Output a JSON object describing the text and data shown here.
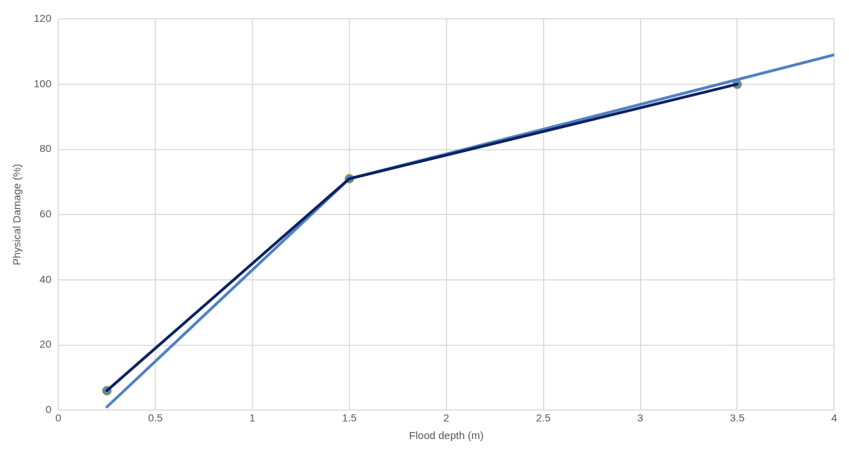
{
  "chart_data": {
    "type": "line",
    "xlabel": "Flood depth (m)",
    "ylabel": "Physical Damage (%)",
    "xlim": [
      0,
      4
    ],
    "xticks": [
      0,
      0.5,
      1,
      1.5,
      2,
      2.5,
      3,
      3.5,
      4
    ],
    "ylim": [
      0,
      120
    ],
    "yticks": [
      0,
      20,
      40,
      60,
      80,
      100,
      120
    ],
    "grid": true,
    "legend": false,
    "series": [
      {
        "type": "line",
        "color": "#0b2260",
        "x": [
          0.25,
          1.5,
          3.5
        ],
        "values": [
          6,
          71,
          100
        ],
        "marker": "none"
      },
      {
        "type": "line",
        "color": "#4f81c4",
        "x": [
          0.25,
          1.5,
          4
        ],
        "values": [
          1,
          71,
          109
        ],
        "marker": "none"
      },
      {
        "type": "scatter",
        "color": "#5b87c5",
        "x": [
          0.25,
          1.5,
          3.5
        ],
        "values": [
          6,
          71,
          100
        ],
        "marker": "circle"
      }
    ]
  }
}
